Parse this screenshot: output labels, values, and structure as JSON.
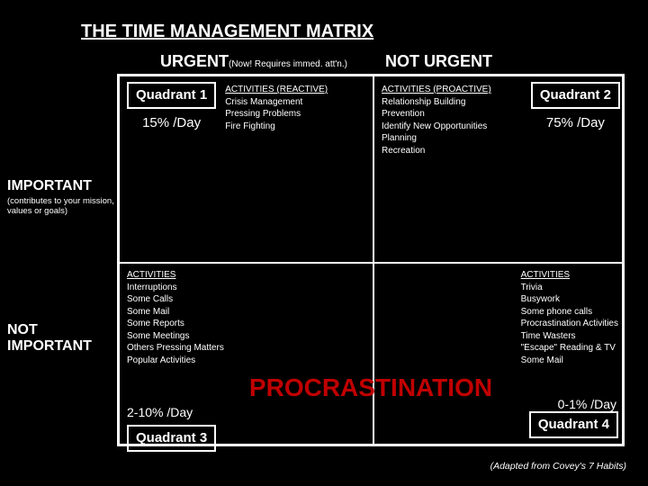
{
  "title": "THE TIME MANAGEMENT MATRIX",
  "columns": {
    "urgent": "URGENT",
    "urgent_sub": "(Now! Requires immed. att'n.)",
    "not_urgent": "NOT URGENT"
  },
  "rows": {
    "important": "IMPORTANT",
    "important_sub": "(contributes to your mission, values or goals)",
    "not_important_line1": "NOT",
    "not_important_line2": "IMPORTANT"
  },
  "q1": {
    "label": "Quadrant 1",
    "pct": "15% /Day",
    "act_hdr": "ACTIVITIES (REACTIVE)",
    "act_1": "Crisis Management",
    "act_2": "Pressing Problems",
    "act_3": "Fire Fighting"
  },
  "q2": {
    "label": "Quadrant 2",
    "pct": "75% /Day",
    "act_hdr": "ACTIVITIES (PROACTIVE)",
    "act_1": "Relationship Building",
    "act_2": "Prevention",
    "act_3": "Identify New Opportunities",
    "act_4": "Planning",
    "act_5": "Recreation"
  },
  "q3": {
    "label": "Quadrant 3",
    "pct": "2-10% /Day",
    "act_hdr": "ACTIVITIES",
    "act_1": "Interruptions",
    "act_2": "Some Calls",
    "act_3": "Some Mail",
    "act_4": "Some Reports",
    "act_5": "Some Meetings",
    "act_6": "Others Pressing Matters",
    "act_7": "Popular Activities"
  },
  "q4": {
    "label": "Quadrant 4",
    "pct": "0-1% /Day",
    "act_hdr": "ACTIVITIES",
    "act_1": "Trivia",
    "act_2": "Busywork",
    "act_3": "Some phone calls",
    "act_4": "Procrastination Activities",
    "act_5": "Time Wasters",
    "act_6": "\"Escape\" Reading & TV",
    "act_7": "Some Mail"
  },
  "procrastination_word": "PROCRASTINATION",
  "footer": "(Adapted from Covey's 7 Habits)",
  "colors": {
    "bg": "#000000",
    "fg": "#ffffff",
    "accent": "#c00000"
  }
}
